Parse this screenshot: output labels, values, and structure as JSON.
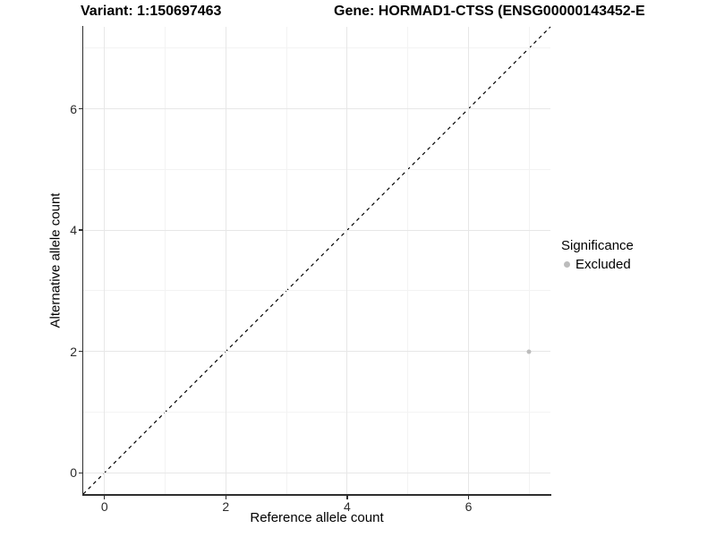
{
  "titles": {
    "variant": "Variant: 1:150697463",
    "gene": "Gene: HORMAD1-CTSS (ENSG00000143452-E"
  },
  "axes": {
    "x_label": "Reference allele count",
    "y_label": "Alternative allele count"
  },
  "legend": {
    "title": "Significance",
    "items": [
      {
        "label": "Excluded",
        "color": "#bcbcbc"
      }
    ]
  },
  "chart_data": {
    "type": "scatter",
    "title": "Variant: 1:150697463 | Gene: HORMAD1-CTSS (ENSG00000143452-E",
    "xlabel": "Reference allele count",
    "ylabel": "Alternative allele count",
    "x_range": [
      -0.35,
      7.35
    ],
    "y_range": [
      -0.35,
      7.35
    ],
    "x_ticks": [
      0,
      2,
      4,
      6
    ],
    "y_ticks": [
      0,
      2,
      4,
      6
    ],
    "x_minor_ticks": [
      1,
      3,
      5,
      7
    ],
    "y_minor_ticks": [
      1,
      3,
      5,
      7
    ],
    "grid": true,
    "legend_position": "right",
    "reference_line": {
      "type": "identity",
      "style": "dashed",
      "color": "#000000",
      "dash": "4 4"
    },
    "series": [
      {
        "name": "Excluded",
        "color": "#bcbcbc",
        "points": [
          {
            "x": 7,
            "y": 2
          }
        ]
      }
    ]
  },
  "colors": {
    "major_grid": "#e7e7e7",
    "minor_grid": "#f3f3f3",
    "axis": "#2e2e2e",
    "background": "#ffffff"
  }
}
